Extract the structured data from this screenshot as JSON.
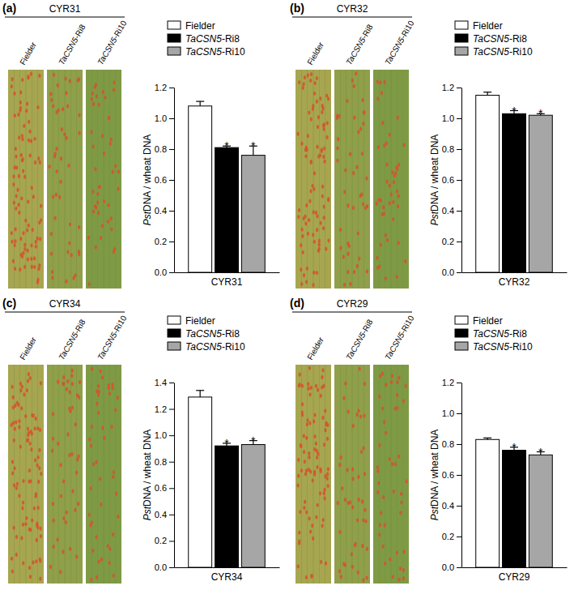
{
  "chart_data": [
    {
      "type": "bar",
      "panel": "(a)",
      "title": "CYR31",
      "categories": [
        "CYR31"
      ],
      "ylabel": "PstDNA / wheat DNA",
      "ylim": [
        0,
        1.2
      ],
      "yticks": [
        {
          "value": 0,
          "label": "0.0"
        },
        {
          "value": 0.2,
          "label": "0.2"
        },
        {
          "value": 0.4,
          "label": "0.4"
        },
        {
          "value": 0.6,
          "label": "0.6"
        },
        {
          "value": 0.8,
          "label": "0.8"
        },
        {
          "value": 1,
          "label": "1.0"
        },
        {
          "value": 1.2,
          "label": "1.2"
        }
      ],
      "legend": "upper left",
      "series": [
        {
          "name": "Fielder",
          "color": "#ffffff",
          "values": [
            1.08
          ],
          "errors": [
            0.03
          ]
        },
        {
          "name": "TaCSN5-Ri8",
          "color": "#000000",
          "values": [
            0.81
          ],
          "errors": [
            0.01
          ],
          "annotation": "*"
        },
        {
          "name": "TaCSN5-Ri10",
          "color": "#a6a6a6",
          "values": [
            0.76
          ],
          "errors": [
            0.06
          ],
          "annotation": "*"
        }
      ]
    },
    {
      "type": "bar",
      "panel": "(b)",
      "title": "CYR32",
      "categories": [
        "CYR32"
      ],
      "ylabel": "PstDNA / wheat DNA",
      "ylim": [
        0,
        1.2
      ],
      "yticks": [
        {
          "value": 0,
          "label": "0.0"
        },
        {
          "value": 0.2,
          "label": "0.2"
        },
        {
          "value": 0.4,
          "label": "0.4"
        },
        {
          "value": 0.6,
          "label": "0.6"
        },
        {
          "value": 0.8,
          "label": "0.8"
        },
        {
          "value": 1,
          "label": "1.0"
        },
        {
          "value": 1.2,
          "label": "1.2"
        }
      ],
      "legend": "upper left",
      "series": [
        {
          "name": "Fielder",
          "color": "#ffffff",
          "values": [
            1.15
          ],
          "errors": [
            0.02
          ]
        },
        {
          "name": "TaCSN5-Ri8",
          "color": "#000000",
          "values": [
            1.03
          ],
          "errors": [
            0.02
          ],
          "annotation": "*"
        },
        {
          "name": "TaCSN5-Ri10",
          "color": "#a6a6a6",
          "values": [
            1.02
          ],
          "errors": [
            0.01
          ],
          "annotation": "*"
        }
      ]
    },
    {
      "type": "bar",
      "panel": "(c)",
      "title": "CYR34",
      "categories": [
        "CYR34"
      ],
      "ylabel": "PstDNA / wheat DNA",
      "ylim": [
        0,
        1.4
      ],
      "yticks": [
        {
          "value": 0,
          "label": "0.0"
        },
        {
          "value": 0.2,
          "label": "0.2"
        },
        {
          "value": 0.4,
          "label": "0.4"
        },
        {
          "value": 0.6,
          "label": "0.6"
        },
        {
          "value": 0.8,
          "label": "0.8"
        },
        {
          "value": 1,
          "label": "1.0"
        },
        {
          "value": 1.2,
          "label": "1.2"
        },
        {
          "value": 1.4,
          "label": "1.4"
        }
      ],
      "legend": "upper left",
      "series": [
        {
          "name": "Fielder",
          "color": "#ffffff",
          "values": [
            1.29
          ],
          "errors": [
            0.05
          ]
        },
        {
          "name": "TaCSN5-Ri8",
          "color": "#000000",
          "values": [
            0.92
          ],
          "errors": [
            0.02
          ],
          "annotation": "*"
        },
        {
          "name": "TaCSN5-Ri10",
          "color": "#a6a6a6",
          "values": [
            0.93
          ],
          "errors": [
            0.03
          ],
          "annotation": "*"
        }
      ]
    },
    {
      "type": "bar",
      "panel": "(d)",
      "title": "CYR29",
      "categories": [
        "CYR29"
      ],
      "ylabel": "PstDNA / wheat DNA",
      "ylim": [
        0,
        1.2
      ],
      "yticks": [
        {
          "value": 0,
          "label": "0.0"
        },
        {
          "value": 0.2,
          "label": "0.2"
        },
        {
          "value": 0.4,
          "label": "0.4"
        },
        {
          "value": 0.6,
          "label": "0.6"
        },
        {
          "value": 0.8,
          "label": "0.8"
        },
        {
          "value": 1,
          "label": "1.0"
        },
        {
          "value": 1.2,
          "label": "1.2"
        }
      ],
      "legend": "upper left",
      "series": [
        {
          "name": "Fielder",
          "color": "#ffffff",
          "values": [
            0.83
          ],
          "errors": [
            0.01
          ]
        },
        {
          "name": "TaCSN5-Ri8",
          "color": "#000000",
          "values": [
            0.76
          ],
          "errors": [
            0.02
          ],
          "annotation": "*"
        },
        {
          "name": "TaCSN5-Ri10",
          "color": "#a6a6a6",
          "values": [
            0.73
          ],
          "errors": [
            0.02
          ],
          "annotation": "*"
        }
      ]
    }
  ]
}
